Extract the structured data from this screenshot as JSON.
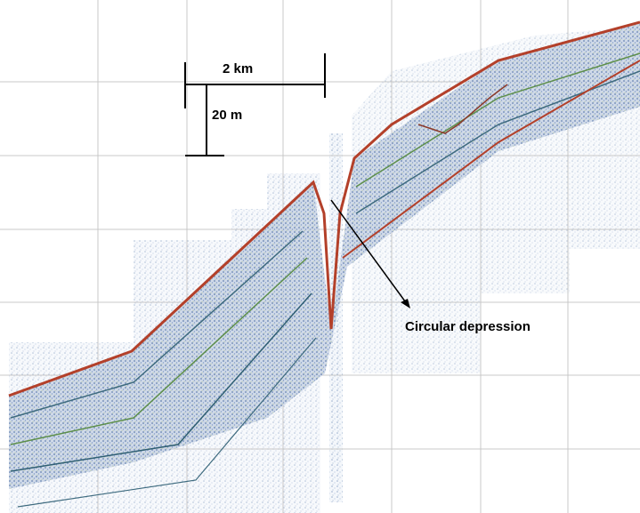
{
  "scale_bar": {
    "horizontal_label": "2 km",
    "vertical_label": "20 m"
  },
  "annotation": {
    "label": "Circular depression"
  }
}
